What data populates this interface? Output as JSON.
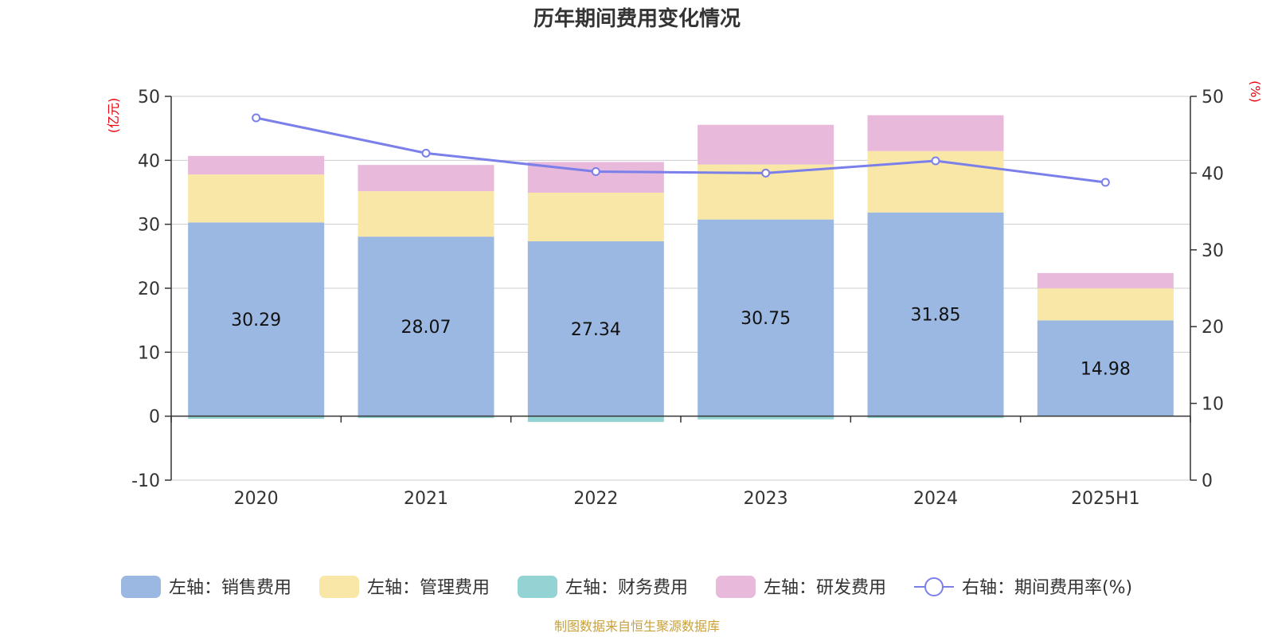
{
  "chart_data": {
    "type": "bar",
    "title": "历年期间费用变化情况",
    "categories": [
      "2020",
      "2021",
      "2022",
      "2023",
      "2024",
      "2025H1"
    ],
    "left_axis": {
      "unit": "(亿元)",
      "ylim": [
        -10,
        50
      ],
      "ticks": [
        -10,
        0,
        10,
        20,
        30,
        40,
        50
      ]
    },
    "right_axis": {
      "unit": "(%)",
      "ylim": [
        0,
        50
      ],
      "ticks": [
        0,
        10,
        20,
        30,
        40,
        50
      ]
    },
    "series": [
      {
        "name": "左轴：销售费用",
        "axis": "left",
        "stack": "expense",
        "color": "#9bb8e2",
        "values": [
          30.29,
          28.07,
          27.34,
          30.75,
          31.85,
          14.98
        ],
        "labels_shown": true
      },
      {
        "name": "左轴：管理费用",
        "axis": "left",
        "stack": "expense",
        "color": "#f8e7a6",
        "values": [
          7.5,
          7.1,
          7.6,
          8.6,
          9.6,
          5.0
        ]
      },
      {
        "name": "左轴：财务费用",
        "axis": "left",
        "stack": "expense",
        "color": "#93d3d3",
        "values": [
          -0.4,
          -0.3,
          -0.9,
          -0.5,
          -0.3,
          0.0
        ]
      },
      {
        "name": "左轴：研发费用",
        "axis": "left",
        "stack": "expense",
        "color": "#e8b9da",
        "values": [
          2.9,
          4.1,
          4.8,
          6.2,
          5.6,
          2.4
        ]
      },
      {
        "name": "右轴：期间费用率(%)",
        "axis": "right",
        "type": "line",
        "color": "#7b7fea",
        "values": [
          47.2,
          42.6,
          40.2,
          40.0,
          41.6,
          38.8
        ]
      }
    ],
    "grid": true,
    "legend_position": "bottom"
  },
  "footer": {
    "source": "制图数据来自恒生聚源数据库"
  }
}
